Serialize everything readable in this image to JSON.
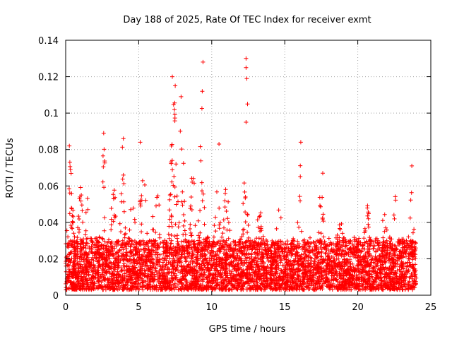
{
  "chart_data": {
    "type": "scatter",
    "title": "Day 188 of 2025, Rate Of TEC Index for receiver exmt",
    "xlabel": "GPS time / hours",
    "ylabel": "ROTI / TECUs",
    "xlim": [
      0,
      25
    ],
    "ylim": [
      0,
      0.14
    ],
    "xticks": [
      0,
      5,
      10,
      15,
      20,
      25
    ],
    "xtick_labels": [
      "0",
      "5",
      "10",
      "15",
      "20",
      "25"
    ],
    "yticks": [
      0,
      0.02,
      0.04,
      0.06,
      0.08,
      0.1,
      0.12,
      0.14
    ],
    "ytick_labels": [
      "0",
      "0.02",
      "0.04",
      "0.06",
      "0.08",
      "0.1",
      "0.12",
      "0.14"
    ],
    "grid": true,
    "marker": "+",
    "color": "#ff0000",
    "x_data_range": [
      0,
      24
    ],
    "typical_roti_band": [
      0.003,
      0.03
    ],
    "notable_points": [
      {
        "x": 0.25,
        "y": 0.082
      },
      {
        "x": 2.6,
        "y": 0.089
      },
      {
        "x": 3.95,
        "y": 0.086
      },
      {
        "x": 5.1,
        "y": 0.084
      },
      {
        "x": 7.3,
        "y": 0.12
      },
      {
        "x": 7.5,
        "y": 0.115
      },
      {
        "x": 7.9,
        "y": 0.109
      },
      {
        "x": 9.4,
        "y": 0.128
      },
      {
        "x": 9.35,
        "y": 0.112
      },
      {
        "x": 10.5,
        "y": 0.083
      },
      {
        "x": 12.35,
        "y": 0.13
      },
      {
        "x": 12.35,
        "y": 0.125
      },
      {
        "x": 12.4,
        "y": 0.119
      },
      {
        "x": 12.45,
        "y": 0.105
      },
      {
        "x": 12.35,
        "y": 0.095
      },
      {
        "x": 16.1,
        "y": 0.084
      },
      {
        "x": 17.6,
        "y": 0.067
      },
      {
        "x": 23.7,
        "y": 0.071
      }
    ],
    "activity_bursts": [
      {
        "center": 0.3,
        "width": 0.35,
        "peak": 0.075
      },
      {
        "center": 1.0,
        "width": 0.3,
        "peak": 0.06
      },
      {
        "center": 1.5,
        "width": 0.3,
        "peak": 0.055
      },
      {
        "center": 2.6,
        "width": 0.25,
        "peak": 0.082
      },
      {
        "center": 3.3,
        "width": 0.4,
        "peak": 0.06
      },
      {
        "center": 3.9,
        "width": 0.25,
        "peak": 0.082
      },
      {
        "center": 4.6,
        "width": 0.3,
        "peak": 0.065
      },
      {
        "center": 5.3,
        "width": 0.35,
        "peak": 0.075
      },
      {
        "center": 6.2,
        "width": 0.35,
        "peak": 0.068
      },
      {
        "center": 7.4,
        "width": 0.35,
        "peak": 0.11
      },
      {
        "center": 7.9,
        "width": 0.3,
        "peak": 0.1
      },
      {
        "center": 8.7,
        "width": 0.3,
        "peak": 0.07
      },
      {
        "center": 9.3,
        "width": 0.25,
        "peak": 0.105
      },
      {
        "center": 10.4,
        "width": 0.3,
        "peak": 0.078
      },
      {
        "center": 11.0,
        "width": 0.35,
        "peak": 0.06
      },
      {
        "center": 12.3,
        "width": 0.3,
        "peak": 0.07
      },
      {
        "center": 13.3,
        "width": 0.4,
        "peak": 0.05
      },
      {
        "center": 14.6,
        "width": 0.4,
        "peak": 0.05
      },
      {
        "center": 16.05,
        "width": 0.25,
        "peak": 0.075
      },
      {
        "center": 17.5,
        "width": 0.3,
        "peak": 0.062
      },
      {
        "center": 18.7,
        "width": 0.4,
        "peak": 0.05
      },
      {
        "center": 20.7,
        "width": 0.4,
        "peak": 0.05
      },
      {
        "center": 21.8,
        "width": 0.4,
        "peak": 0.045
      },
      {
        "center": 22.6,
        "width": 0.3,
        "peak": 0.057
      },
      {
        "center": 23.7,
        "width": 0.3,
        "peak": 0.065
      }
    ]
  }
}
